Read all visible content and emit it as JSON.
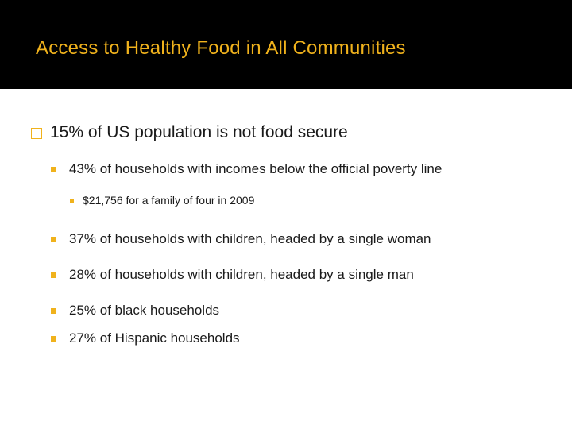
{
  "slide": {
    "title": "Access to Healthy Food in All Communities",
    "accent_color": "#f0b21c",
    "title_bar_color": "#000000"
  },
  "bullets": {
    "main": {
      "icon": "hollow-square-icon",
      "text": "15% of US population is not food secure"
    },
    "sub": [
      {
        "icon": "filled-square-icon",
        "text": "43% of households with incomes below the official poverty line"
      },
      {
        "icon": "filled-square-icon",
        "text": "37% of households with children, headed by a single woman"
      },
      {
        "icon": "filled-square-icon",
        "text": "28% of households with children, headed by a single man"
      },
      {
        "icon": "filled-square-icon",
        "text": "25% of black households"
      },
      {
        "icon": "filled-square-icon",
        "text": "27% of Hispanic households"
      }
    ],
    "subsub": {
      "icon": "small-square-icon",
      "text": "$21,756 for a family of four in 2009"
    }
  }
}
